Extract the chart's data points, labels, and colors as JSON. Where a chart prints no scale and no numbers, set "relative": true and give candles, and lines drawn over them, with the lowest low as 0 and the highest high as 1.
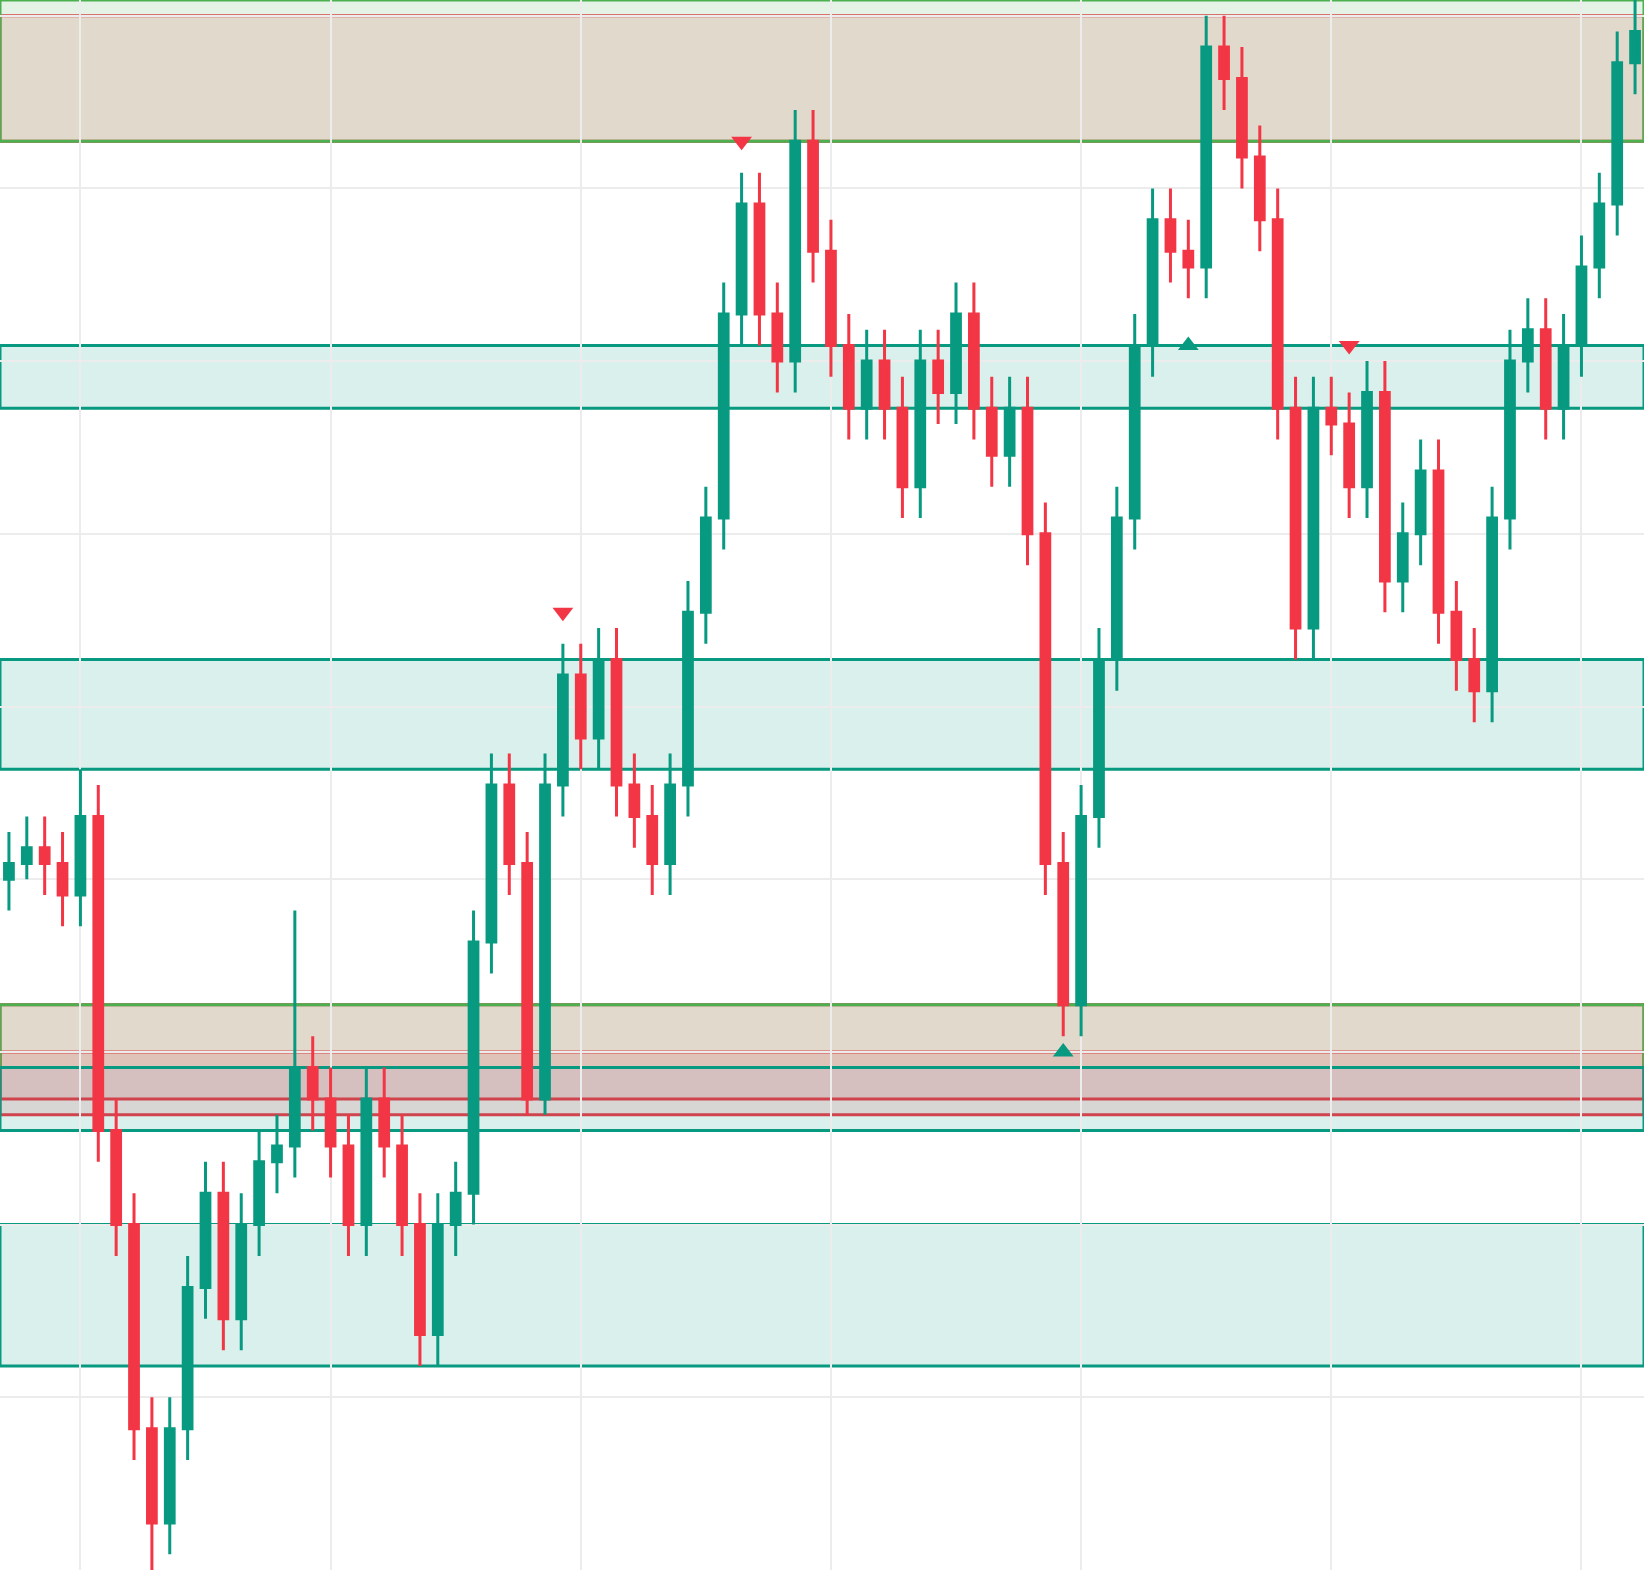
{
  "chart_data": {
    "type": "candlestick",
    "relative": true,
    "grid": true,
    "categories": [
      null,
      null,
      null,
      null,
      null,
      null,
      null,
      null,
      null,
      null,
      null,
      null,
      null,
      null,
      null,
      null,
      null,
      null,
      null,
      null,
      null,
      null,
      null,
      null,
      null,
      null,
      null,
      null,
      null,
      null,
      null,
      null,
      null,
      null,
      null,
      null,
      null,
      null,
      null,
      null,
      null,
      null,
      null,
      null,
      null,
      null,
      null,
      null,
      null,
      null,
      null,
      null,
      null,
      null,
      null,
      null,
      null,
      null,
      null,
      null,
      null,
      null,
      null,
      null,
      null,
      null,
      null,
      null,
      null,
      null,
      null,
      null,
      null,
      null,
      null,
      null,
      null,
      null,
      null,
      null,
      null,
      null,
      null,
      null,
      null,
      null,
      null,
      null,
      null,
      null,
      null,
      null
    ],
    "ohlc": [
      [
        0.44,
        0.47,
        0.42,
        0.45
      ],
      [
        0.45,
        0.48,
        0.44,
        0.46
      ],
      [
        0.46,
        0.48,
        0.43,
        0.45
      ],
      [
        0.45,
        0.47,
        0.41,
        0.43
      ],
      [
        0.43,
        0.51,
        0.41,
        0.48
      ],
      [
        0.48,
        0.5,
        0.26,
        0.28
      ],
      [
        0.28,
        0.3,
        0.2,
        0.22
      ],
      [
        0.22,
        0.24,
        0.07,
        0.09
      ],
      [
        0.09,
        0.11,
        0,
        0.03
      ],
      [
        0.03,
        0.11,
        0.01,
        0.09
      ],
      [
        0.09,
        0.2,
        0.07,
        0.18
      ],
      [
        0.18,
        0.26,
        0.16,
        0.24
      ],
      [
        0.24,
        0.26,
        0.14,
        0.16
      ],
      [
        0.16,
        0.24,
        0.14,
        0.22
      ],
      [
        0.22,
        0.28,
        0.2,
        0.26
      ],
      [
        0.26,
        0.29,
        0.24,
        0.27
      ],
      [
        0.27,
        0.42,
        0.25,
        0.32
      ],
      [
        0.32,
        0.34,
        0.28,
        0.3
      ],
      [
        0.3,
        0.32,
        0.25,
        0.27
      ],
      [
        0.27,
        0.29,
        0.2,
        0.22
      ],
      [
        0.22,
        0.32,
        0.2,
        0.3
      ],
      [
        0.3,
        0.32,
        0.25,
        0.27
      ],
      [
        0.27,
        0.29,
        0.2,
        0.22
      ],
      [
        0.22,
        0.24,
        0.13,
        0.15
      ],
      [
        0.15,
        0.24,
        0.13,
        0.22
      ],
      [
        0.22,
        0.26,
        0.2,
        0.24
      ],
      [
        0.24,
        0.42,
        0.22,
        0.4
      ],
      [
        0.4,
        0.52,
        0.38,
        0.5
      ],
      [
        0.5,
        0.52,
        0.43,
        0.45
      ],
      [
        0.45,
        0.47,
        0.29,
        0.3
      ],
      [
        0.3,
        0.52,
        0.29,
        0.5
      ],
      [
        0.5,
        0.59,
        0.48,
        0.57
      ],
      [
        0.57,
        0.59,
        0.51,
        0.53
      ],
      [
        0.53,
        0.6,
        0.51,
        0.58
      ],
      [
        0.58,
        0.6,
        0.48,
        0.5
      ],
      [
        0.5,
        0.52,
        0.46,
        0.48
      ],
      [
        0.48,
        0.5,
        0.43,
        0.45
      ],
      [
        0.45,
        0.52,
        0.43,
        0.5
      ],
      [
        0.5,
        0.63,
        0.48,
        0.61
      ],
      [
        0.61,
        0.69,
        0.59,
        0.67
      ],
      [
        0.67,
        0.82,
        0.65,
        0.8
      ],
      [
        0.8,
        0.89,
        0.78,
        0.87
      ],
      [
        0.87,
        0.89,
        0.78,
        0.8
      ],
      [
        0.8,
        0.82,
        0.75,
        0.77
      ],
      [
        0.77,
        0.93,
        0.75,
        0.91
      ],
      [
        0.91,
        0.93,
        0.82,
        0.84
      ],
      [
        0.84,
        0.86,
        0.76,
        0.78
      ],
      [
        0.78,
        0.8,
        0.72,
        0.74
      ],
      [
        0.74,
        0.79,
        0.72,
        0.77
      ],
      [
        0.77,
        0.79,
        0.72,
        0.74
      ],
      [
        0.74,
        0.76,
        0.67,
        0.69
      ],
      [
        0.69,
        0.79,
        0.67,
        0.77
      ],
      [
        0.77,
        0.79,
        0.73,
        0.75
      ],
      [
        0.75,
        0.82,
        0.73,
        0.8
      ],
      [
        0.8,
        0.82,
        0.72,
        0.74
      ],
      [
        0.74,
        0.76,
        0.69,
        0.71
      ],
      [
        0.71,
        0.76,
        0.69,
        0.74
      ],
      [
        0.74,
        0.76,
        0.64,
        0.66
      ],
      [
        0.66,
        0.68,
        0.43,
        0.45
      ],
      [
        0.45,
        0.47,
        0.34,
        0.36
      ],
      [
        0.36,
        0.5,
        0.34,
        0.48
      ],
      [
        0.48,
        0.6,
        0.46,
        0.58
      ],
      [
        0.58,
        0.69,
        0.56,
        0.67
      ],
      [
        0.67,
        0.8,
        0.65,
        0.78
      ],
      [
        0.78,
        0.88,
        0.76,
        0.86
      ],
      [
        0.86,
        0.88,
        0.82,
        0.84
      ],
      [
        0.84,
        0.86,
        0.81,
        0.83
      ],
      [
        0.83,
        0.99,
        0.81,
        0.97
      ],
      [
        0.97,
        0.99,
        0.93,
        0.95
      ],
      [
        0.95,
        0.97,
        0.88,
        0.9
      ],
      [
        0.9,
        0.92,
        0.84,
        0.86
      ],
      [
        0.86,
        0.88,
        0.72,
        0.74
      ],
      [
        0.74,
        0.76,
        0.58,
        0.6
      ],
      [
        0.6,
        0.76,
        0.58,
        0.74
      ],
      [
        0.74,
        0.76,
        0.71,
        0.73
      ],
      [
        0.73,
        0.75,
        0.67,
        0.69
      ],
      [
        0.69,
        0.77,
        0.67,
        0.75
      ],
      [
        0.75,
        0.77,
        0.61,
        0.63
      ],
      [
        0.63,
        0.68,
        0.61,
        0.66
      ],
      [
        0.66,
        0.72,
        0.64,
        0.7
      ],
      [
        0.7,
        0.72,
        0.59,
        0.61
      ],
      [
        0.61,
        0.63,
        0.56,
        0.58
      ],
      [
        0.58,
        0.6,
        0.54,
        0.56
      ],
      [
        0.56,
        0.69,
        0.54,
        0.67
      ],
      [
        0.67,
        0.79,
        0.65,
        0.77
      ],
      [
        0.77,
        0.81,
        0.75,
        0.79
      ],
      [
        0.79,
        0.81,
        0.72,
        0.74
      ],
      [
        0.74,
        0.8,
        0.72,
        0.78
      ],
      [
        0.78,
        0.85,
        0.76,
        0.83
      ],
      [
        0.83,
        0.89,
        0.81,
        0.87
      ],
      [
        0.87,
        0.98,
        0.85,
        0.96
      ],
      [
        0.96,
        1.0,
        0.94,
        0.98
      ]
    ],
    "series": [
      {
        "type": "scatter",
        "marker": "triangle",
        "color": "#f23645",
        "values": [
          null,
          null,
          null,
          null,
          null,
          null,
          null,
          null,
          null,
          null,
          null,
          null,
          null,
          null,
          null,
          null,
          null,
          null,
          null,
          null,
          null,
          null,
          null,
          null,
          null,
          null,
          null,
          null,
          null,
          null,
          null,
          0.61,
          null,
          null,
          null,
          null,
          null,
          null,
          null,
          null,
          null,
          0.91,
          null,
          null,
          null,
          null,
          null,
          null,
          null,
          null,
          null,
          null,
          null,
          null,
          null,
          null,
          null,
          null,
          null,
          null,
          null,
          null,
          null,
          null,
          null,
          null,
          null,
          null,
          null,
          null,
          null,
          null,
          null,
          null,
          null,
          0.78,
          null,
          null,
          null,
          null,
          null,
          null,
          null,
          null,
          null,
          null,
          null,
          null,
          null,
          null,
          null,
          null
        ]
      },
      {
        "type": "scatter",
        "marker": "triangle",
        "color": "#089981",
        "values": [
          null,
          null,
          null,
          null,
          null,
          null,
          null,
          null,
          null,
          null,
          null,
          null,
          null,
          null,
          null,
          null,
          null,
          null,
          null,
          null,
          null,
          null,
          null,
          null,
          null,
          null,
          null,
          null,
          null,
          null,
          null,
          null,
          null,
          null,
          null,
          null,
          null,
          null,
          null,
          null,
          null,
          null,
          null,
          null,
          null,
          null,
          null,
          null,
          null,
          null,
          null,
          null,
          null,
          null,
          null,
          null,
          null,
          null,
          null,
          0.33,
          null,
          null,
          null,
          null,
          null,
          null,
          0.78,
          null,
          null,
          null,
          null,
          null,
          null,
          null,
          null,
          null,
          null,
          null,
          null,
          null,
          null,
          null,
          null,
          null,
          null,
          null,
          null,
          null,
          null,
          null,
          null,
          null
        ]
      }
    ],
    "bands": [
      {
        "axis": "y",
        "from": 0.91,
        "to": 0.99,
        "color": "#f23645"
      },
      {
        "axis": "y",
        "from": 0.3,
        "to": 0.36,
        "color": "#f23645"
      },
      {
        "axis": "y",
        "from": 0.29,
        "to": 0.33,
        "color": "#f23645"
      },
      {
        "axis": "y",
        "from": 0.32,
        "to": 0.36,
        "color": "#4caf50"
      },
      {
        "axis": "y",
        "from": 0.28,
        "to": 0.32,
        "color": "#089981"
      },
      {
        "axis": "y",
        "from": 0.13,
        "to": 0.22,
        "color": "#089981"
      },
      {
        "axis": "y",
        "from": 0.51,
        "to": 0.58,
        "color": "#089981"
      },
      {
        "axis": "y",
        "from": 0.74,
        "to": 0.78,
        "color": "#089981"
      },
      {
        "axis": "y",
        "from": 0.91,
        "to": 1.0,
        "color": "#4caf50"
      }
    ]
  }
}
